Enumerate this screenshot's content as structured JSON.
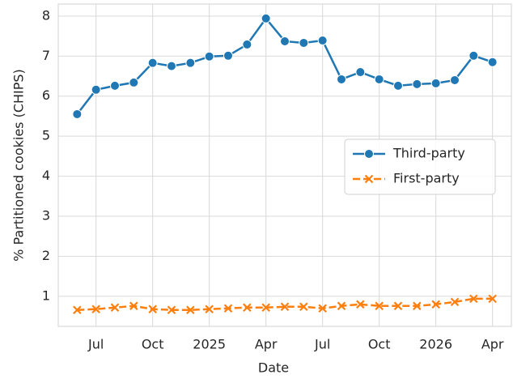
{
  "chart_data": {
    "type": "line",
    "xlabel": "Date",
    "ylabel": "% Partitioned cookies (CHIPS)",
    "x": [
      "2024-06",
      "2024-07",
      "2024-08",
      "2024-09",
      "2024-10",
      "2024-11",
      "2024-12",
      "2025-01",
      "2025-02",
      "2025-03",
      "2025-04",
      "2025-05",
      "2025-06",
      "2025-07",
      "2025-08",
      "2025-09",
      "2025-10",
      "2025-11",
      "2025-12",
      "2026-01",
      "2026-02",
      "2026-03",
      "2026-04"
    ],
    "series": [
      {
        "name": "Third-party",
        "color": "#1f77b4",
        "marker": "circle",
        "linestyle": "solid",
        "values": [
          5.55,
          6.16,
          6.26,
          6.34,
          6.83,
          6.75,
          6.83,
          6.99,
          7.01,
          7.29,
          7.94,
          7.37,
          7.33,
          7.39,
          6.42,
          6.6,
          6.42,
          6.26,
          6.3,
          6.32,
          6.4,
          7.01,
          6.85
        ]
      },
      {
        "name": "First-party",
        "color": "#ff7f0e",
        "marker": "x",
        "linestyle": "dashed",
        "values": [
          0.66,
          0.68,
          0.72,
          0.76,
          0.68,
          0.66,
          0.66,
          0.68,
          0.7,
          0.72,
          0.72,
          0.74,
          0.74,
          0.7,
          0.76,
          0.8,
          0.76,
          0.76,
          0.76,
          0.8,
          0.86,
          0.94,
          0.94
        ]
      }
    ],
    "xlim": [
      "2024-05",
      "2026-05"
    ],
    "xticks": [
      {
        "value": "2024-07",
        "label": "Jul"
      },
      {
        "value": "2024-10",
        "label": "Oct"
      },
      {
        "value": "2025-01",
        "label": "2025"
      },
      {
        "value": "2025-04",
        "label": "Apr"
      },
      {
        "value": "2025-07",
        "label": "Jul"
      },
      {
        "value": "2025-10",
        "label": "Oct"
      },
      {
        "value": "2026-01",
        "label": "2026"
      },
      {
        "value": "2026-04",
        "label": "Apr"
      }
    ],
    "ylim": [
      0.25,
      8.3
    ],
    "yticks": [
      1,
      2,
      3,
      4,
      5,
      6,
      7,
      8
    ],
    "grid": true,
    "legend": "center right"
  }
}
